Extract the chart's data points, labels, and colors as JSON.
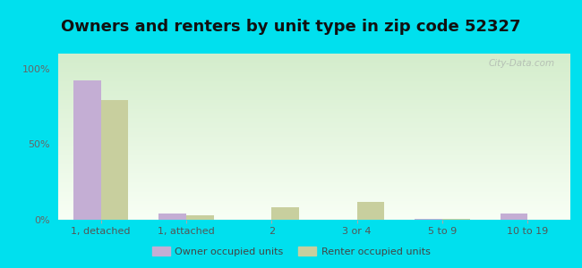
{
  "title": "Owners and renters by unit type in zip code 52327",
  "categories": [
    "1, detached",
    "1, attached",
    "2",
    "3 or 4",
    "5 to 9",
    "10 to 19"
  ],
  "owner_values": [
    92,
    4,
    0,
    0,
    0.5,
    4
  ],
  "renter_values": [
    79,
    3,
    8,
    12,
    0.5,
    0
  ],
  "owner_color": "#c4aed4",
  "renter_color": "#c8cf9e",
  "outer_bg": "#00e0ee",
  "plot_bg_color": "#e8f5e2",
  "title_fontsize": 13,
  "ytick_labels": [
    "0%",
    "50%",
    "100%"
  ],
  "ytick_values": [
    0,
    50,
    100
  ],
  "ylim": [
    0,
    110
  ],
  "bar_width": 0.32,
  "watermark": "City-Data.com",
  "legend_labels": [
    "Owner occupied units",
    "Renter occupied units"
  ]
}
